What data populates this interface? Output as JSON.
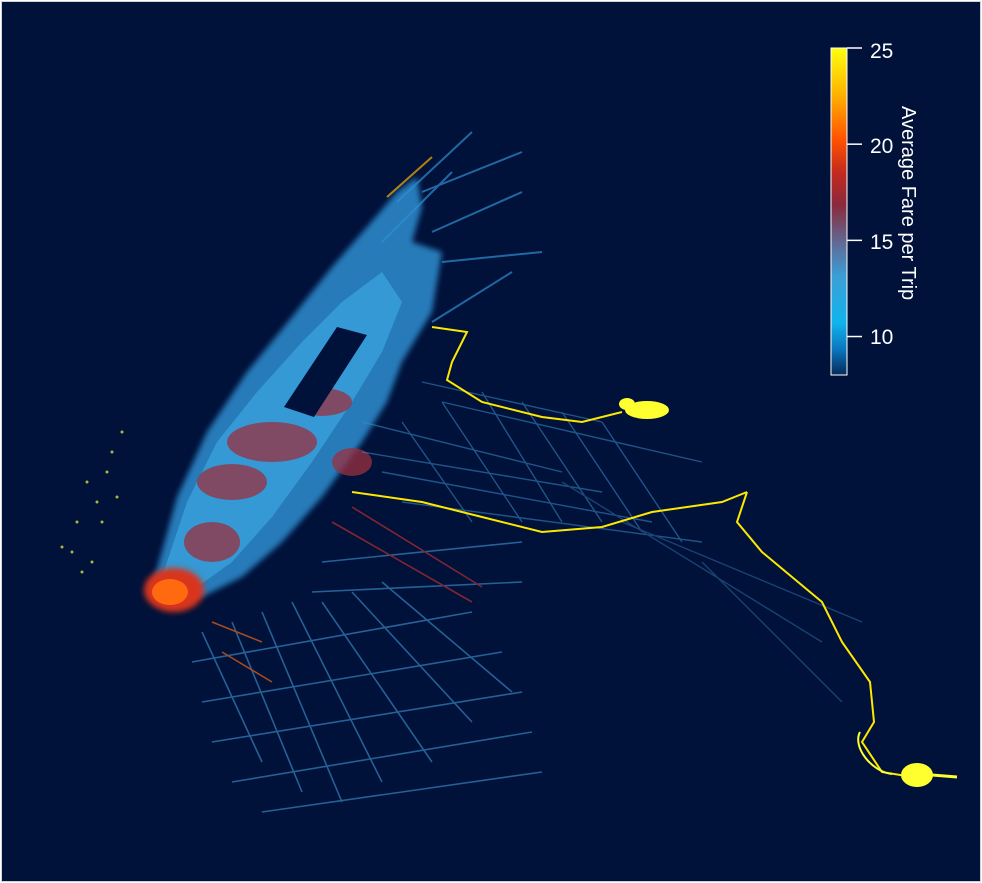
{
  "legend": {
    "title": "Average Fare per Trip",
    "ticks": [
      "25",
      "20",
      "15",
      "10"
    ],
    "tick_values": [
      25,
      20,
      15,
      10
    ],
    "range": [
      8,
      25
    ],
    "colors": [
      "#052a5a",
      "#0ba3e6",
      "#3aa5dd",
      "#5a6a9a",
      "#8a2a3a",
      "#c82b1c",
      "#ff5a00",
      "#ffb000",
      "#ffff00"
    ]
  },
  "map": {
    "background": "#00113a",
    "features": [
      "manhattan-trips",
      "central-park-gap",
      "lower-manhattan-hotspot",
      "brooklyn-trips",
      "queens-trips",
      "laguardia-airport",
      "jfk-airport",
      "jersey-city-trips",
      "bronx-trips"
    ]
  }
}
